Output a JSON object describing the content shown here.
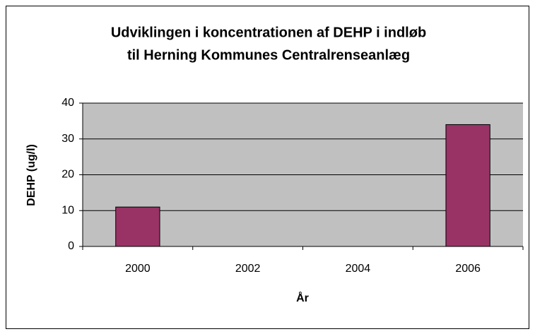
{
  "chart_data": {
    "type": "bar",
    "title": [
      "Udviklingen i koncentrationen af DEHP i indløb",
      "til Herning Kommunes Centralrenseanlæg"
    ],
    "x_label": "År",
    "y_label": "DEHP (ug/l)",
    "categories": [
      "2000",
      "2002",
      "2004",
      "2006"
    ],
    "values": [
      11,
      null,
      null,
      34
    ],
    "color": "#993366",
    "ylim": [
      0,
      40
    ],
    "yticks": [
      0,
      10,
      20,
      30,
      40
    ],
    "grid": true
  }
}
